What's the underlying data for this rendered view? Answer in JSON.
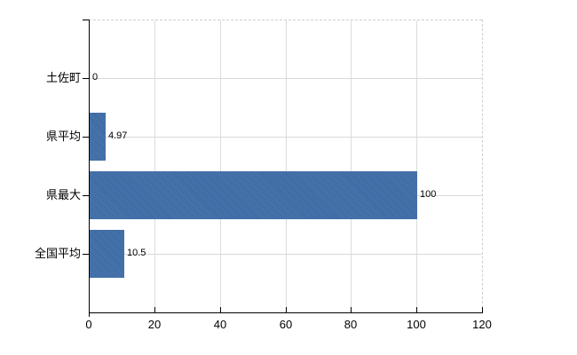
{
  "chart_data": {
    "type": "bar",
    "orientation": "horizontal",
    "title": "",
    "categories": [
      "土佐町",
      "県平均",
      "県最大",
      "全国平均"
    ],
    "values": [
      0,
      4.97,
      100,
      10.5
    ],
    "value_labels": [
      "0",
      "4.97",
      "100",
      "10.5"
    ],
    "series": [
      {
        "name": "",
        "values": [
          0,
          4.97,
          100,
          10.5
        ]
      }
    ],
    "xlabel": "",
    "ylabel": "",
    "xlim": [
      0,
      120
    ],
    "x_ticks": [
      0,
      20,
      40,
      60,
      80,
      100,
      120
    ],
    "x_tick_labels": [
      "0",
      "20",
      "40",
      "60",
      "80",
      "100",
      "120"
    ],
    "grid": "on",
    "legend": "none",
    "colors": {
      "bar": "#3b6ba8",
      "grid": "#d6dbd6",
      "plot_border_dashed": "#cbd0cb",
      "axis": "#000000",
      "text": "#000000",
      "background": "#ffffff"
    }
  }
}
